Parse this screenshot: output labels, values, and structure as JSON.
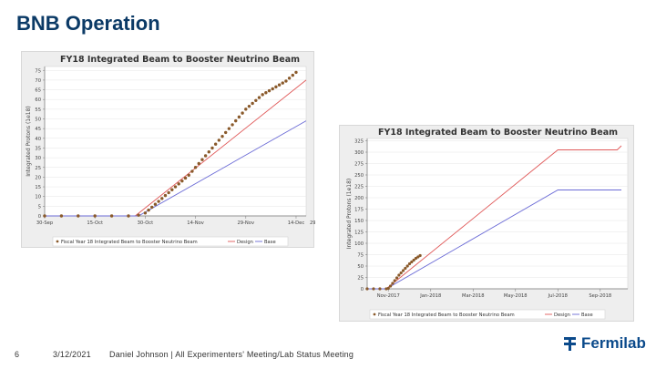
{
  "slide": {
    "title": "BNB Operation",
    "page_number": "6",
    "date": "3/12/2021",
    "credit": "Daniel Johnson | All Experimenters' Meeting/Lab Status Meeting",
    "logo_text": "Fermilab"
  },
  "colors": {
    "title": "#0b3a66",
    "data_points": "#8a5a2b",
    "design_line": "#e05a5a",
    "base_line": "#6b6bd6",
    "plot_bg": "#ffffff",
    "card_bg": "#eeeeee",
    "logo": "#0b4a8b"
  },
  "chart_data": [
    {
      "type": "line",
      "title": "FY18 Integrated Beam to Booster Neutrino Beam",
      "xlabel": "",
      "ylabel": "Integrated Protons (1e18)",
      "ylim": [
        0,
        77
      ],
      "ytick_values": [
        0,
        5,
        10,
        15,
        20,
        25,
        30,
        35,
        40,
        45,
        50,
        55,
        60,
        65,
        70,
        75
      ],
      "ytick_labels": [
        "0",
        "5",
        "10",
        "15",
        "20",
        "25",
        "30",
        "35",
        "40",
        "45",
        "50",
        "55",
        "60",
        "65",
        "70",
        "75"
      ],
      "xlim": [
        0,
        78
      ],
      "xtick_values": [
        0,
        15,
        30,
        45,
        60,
        75
      ],
      "xtick_labels": [
        "30-Sep",
        "15-Oct",
        "30-Oct",
        "14-Nov",
        "29-Nov",
        "14-Dec"
      ],
      "xtick_partial_label": "29-D",
      "xtick_partial_value": 90,
      "legend": [
        "Fiscal Year 18 Integrated Beam to Booster Neutrino Beam",
        "Design",
        "Base"
      ],
      "legend_position": "bottom",
      "series": [
        {
          "name": "Fiscal Year 18 Integrated Beam to Booster Neutrino Beam",
          "style": "points",
          "x": [
            0,
            5,
            10,
            15,
            20,
            25,
            28,
            30,
            31,
            32,
            33,
            34,
            35,
            36,
            37,
            38,
            39,
            40,
            41,
            42,
            43,
            44,
            45,
            46,
            47,
            48,
            49,
            50,
            51,
            52,
            53,
            54,
            55,
            56,
            57,
            58,
            59,
            60,
            61,
            62,
            63,
            64,
            65,
            66,
            67,
            68,
            69,
            70,
            71,
            72,
            73,
            74,
            75
          ],
          "y": [
            0,
            0,
            0,
            0,
            0,
            0,
            0.4,
            1.5,
            3,
            4.5,
            6,
            7.5,
            9,
            10.5,
            12,
            13.5,
            15,
            16.5,
            18,
            19.5,
            21,
            23,
            25,
            27,
            29,
            31,
            33,
            35,
            37,
            39,
            41,
            43,
            45,
            47,
            49,
            51,
            53,
            55,
            56.5,
            58,
            59.5,
            61,
            62.5,
            63.5,
            64.5,
            65.5,
            66.5,
            67.5,
            68.5,
            69.5,
            71,
            72.5,
            74
          ]
        },
        {
          "name": "Design",
          "style": "line",
          "x": [
            0,
            27,
            78
          ],
          "y": [
            0,
            0,
            70
          ]
        },
        {
          "name": "Base",
          "style": "line",
          "x": [
            0,
            28,
            78
          ],
          "y": [
            0,
            0,
            49
          ]
        }
      ]
    },
    {
      "type": "line",
      "title": "FY18 Integrated Beam to Booster Neutrino Beam",
      "xlabel": "",
      "ylabel": "Integrated Protons (1e18)",
      "ylim": [
        0,
        330
      ],
      "ytick_values": [
        0,
        25,
        50,
        75,
        100,
        125,
        150,
        175,
        200,
        225,
        250,
        275,
        300,
        325
      ],
      "ytick_labels": [
        "0",
        "25",
        "50",
        "75",
        "100",
        "125",
        "150",
        "175",
        "200",
        "225",
        "250",
        "275",
        "300",
        "325"
      ],
      "xlim": [
        0,
        12.3
      ],
      "xtick_values": [
        1,
        3,
        5,
        7,
        9,
        11
      ],
      "xtick_labels": [
        "Nov-2017",
        "Jan-2018",
        "Mar-2018",
        "May-2018",
        "Jul-2018",
        "Sep-2018"
      ],
      "legend": [
        "Fiscal Year 18 Integrated Beam to Booster Neutrino Beam",
        "Design",
        "Base"
      ],
      "legend_position": "bottom",
      "series": [
        {
          "name": "Fiscal Year 18 Integrated Beam to Booster Neutrino Beam",
          "style": "points",
          "x": [
            0,
            0.3,
            0.6,
            0.9,
            1.0,
            1.1,
            1.2,
            1.3,
            1.4,
            1.5,
            1.6,
            1.7,
            1.8,
            1.9,
            2.0,
            2.1,
            2.2,
            2.3,
            2.4,
            2.5
          ],
          "y": [
            0,
            0,
            0,
            0,
            1,
            6,
            12,
            18,
            24,
            30,
            35,
            40,
            45,
            50,
            55,
            59,
            63,
            67,
            70,
            73
          ]
        },
        {
          "name": "Design",
          "style": "line",
          "x": [
            0,
            0.9,
            9.0,
            11.8,
            12.0
          ],
          "y": [
            0,
            0,
            305,
            305,
            314
          ]
        },
        {
          "name": "Base",
          "style": "line",
          "x": [
            0,
            0.9,
            9.0,
            12.0
          ],
          "y": [
            0,
            0,
            217,
            217
          ]
        }
      ]
    }
  ]
}
